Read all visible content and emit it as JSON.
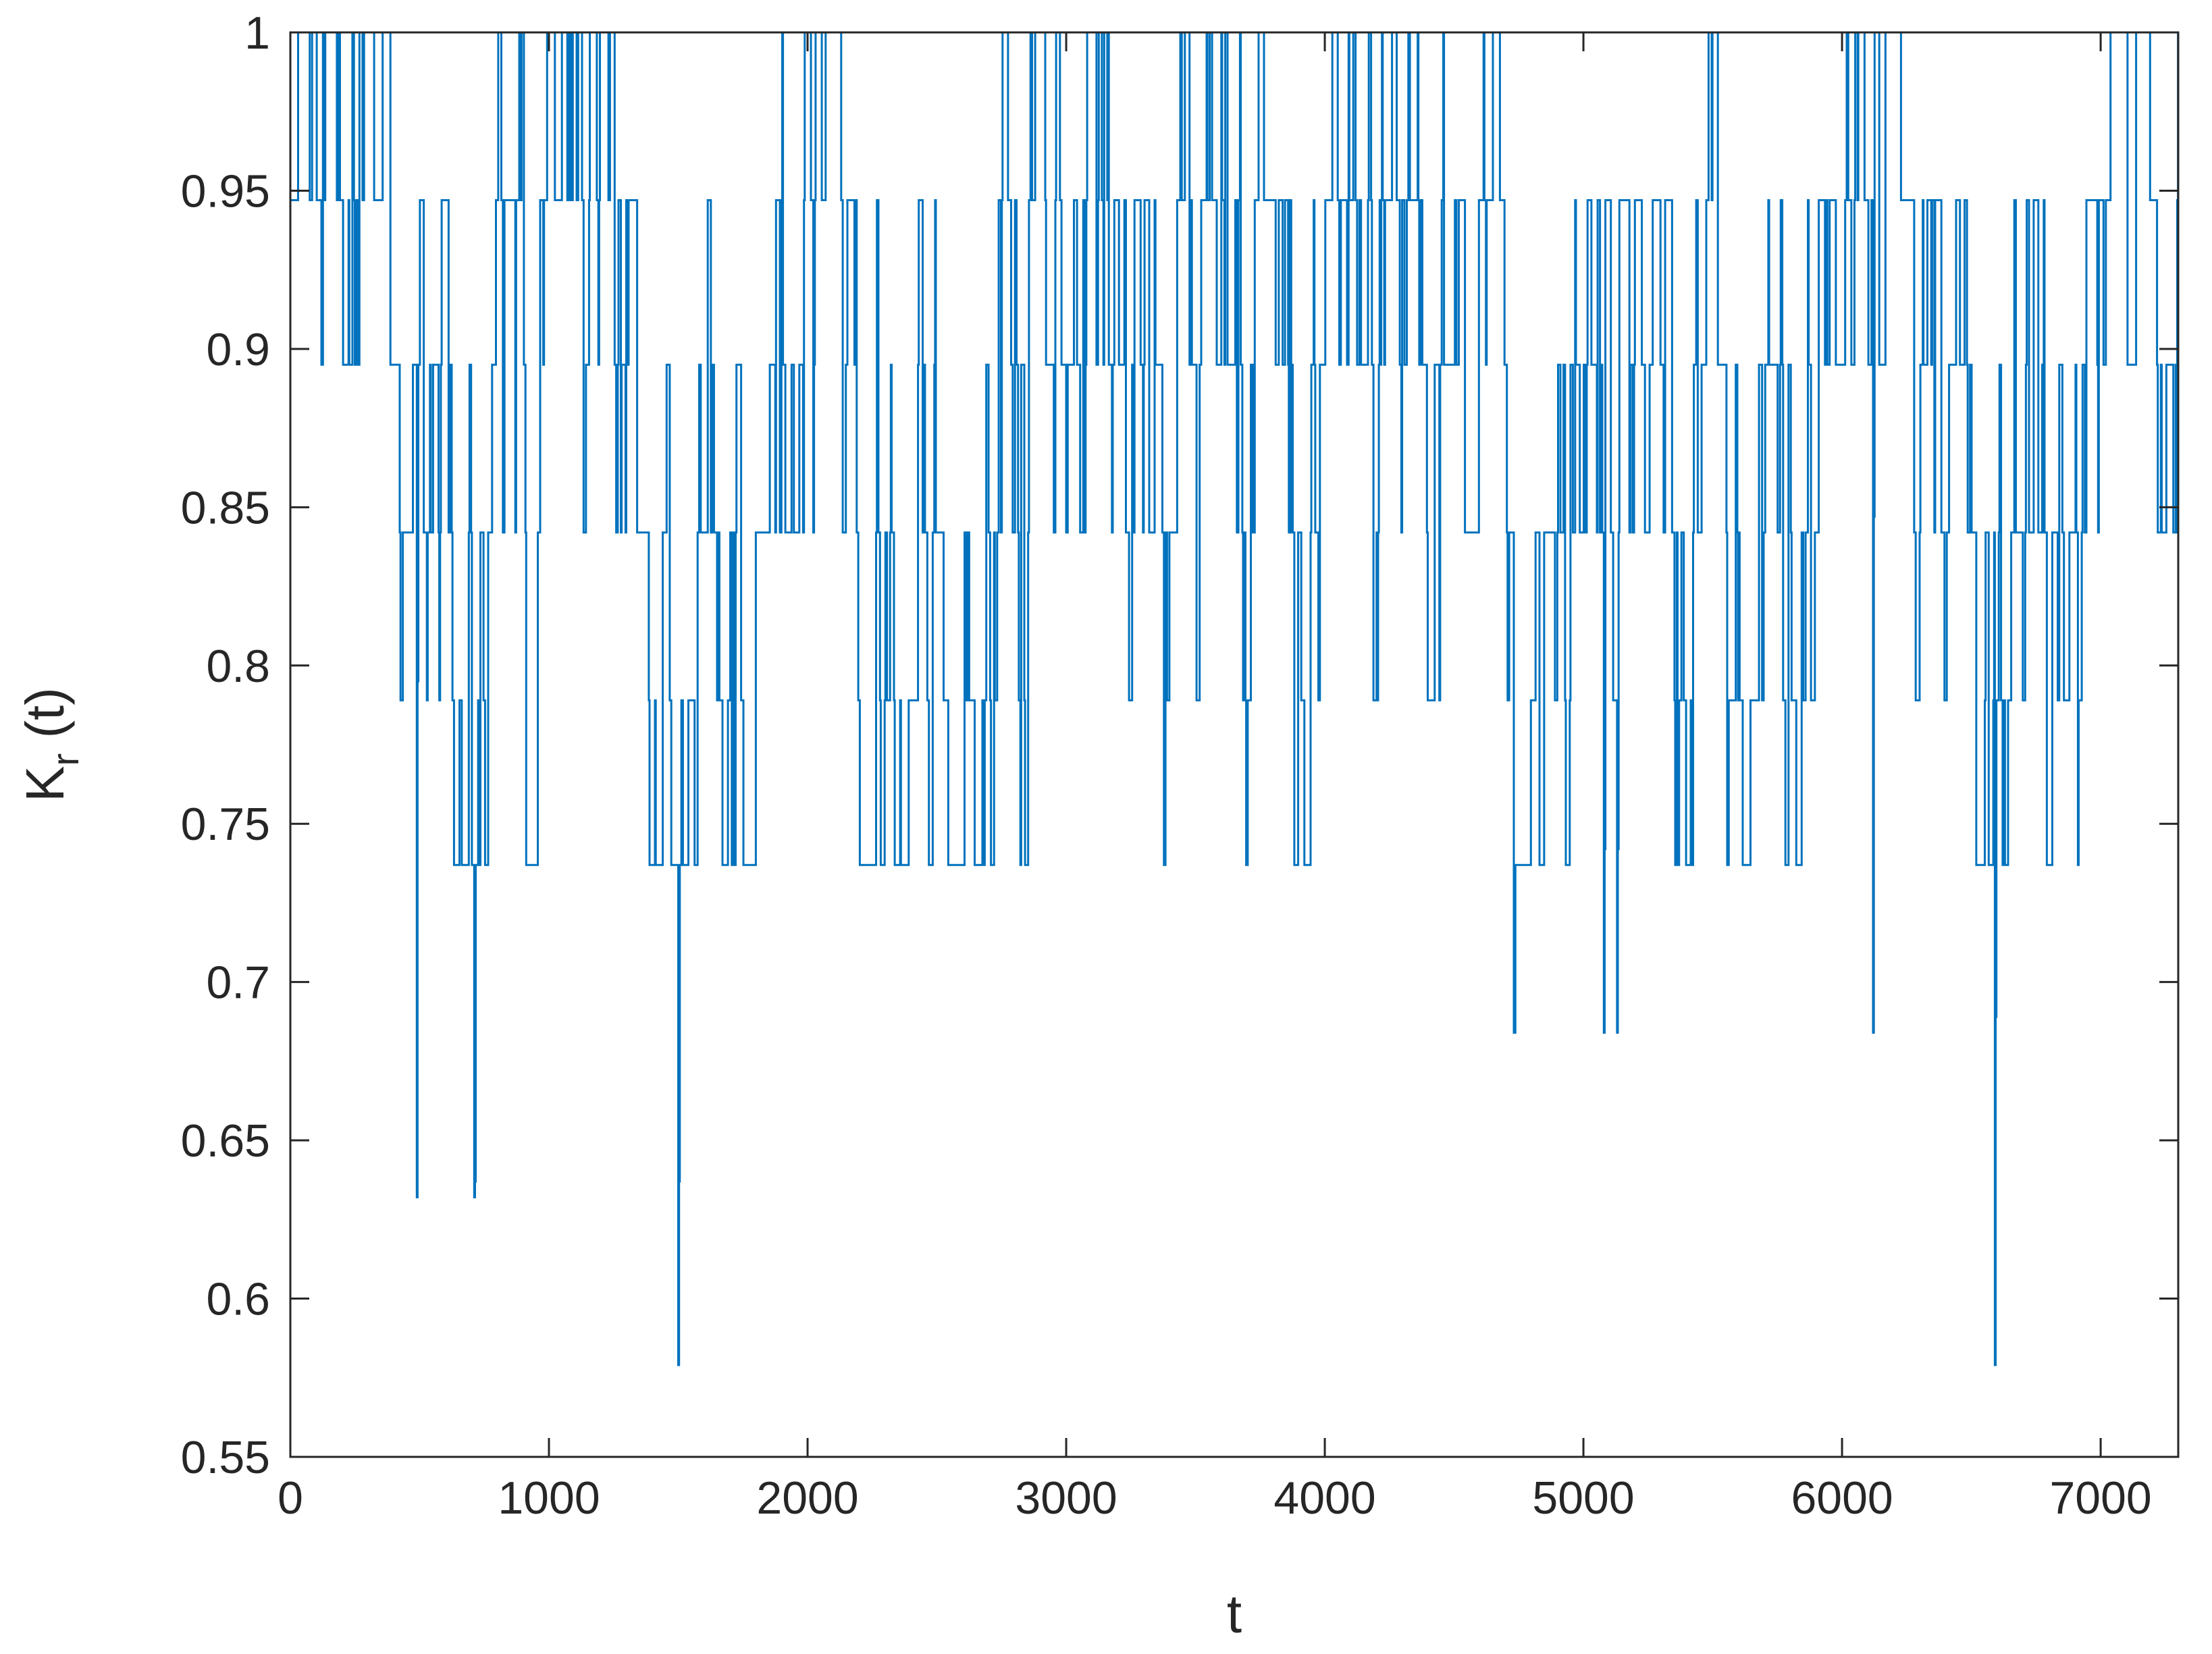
{
  "chart_data": {
    "type": "line",
    "title": "",
    "xlabel": "t",
    "ylabel": {
      "main": "K",
      "subscript": "r",
      "suffix": " (t)"
    },
    "xlim": [
      0,
      7300
    ],
    "ylim": [
      0.55,
      1.0
    ],
    "x_ticks": [
      0,
      1000,
      2000,
      3000,
      4000,
      5000,
      6000,
      7000
    ],
    "x_tick_labels": [
      "0",
      "1000",
      "2000",
      "3000",
      "4000",
      "5000",
      "6000",
      "7000"
    ],
    "y_ticks": [
      0.55,
      0.6,
      0.65,
      0.7,
      0.75,
      0.8,
      0.85,
      0.9,
      0.95,
      1.0
    ],
    "y_tick_labels": [
      "0.55",
      "0.6",
      "0.65",
      "0.7",
      "0.75",
      "0.8",
      "0.85",
      "0.9",
      "0.95",
      "1"
    ],
    "grid": false,
    "legend": "none",
    "series": [
      {
        "color": "#0072BD",
        "levels": [
          0.579,
          0.632,
          0.684,
          0.737,
          0.789,
          0.842,
          0.895,
          0.947,
          1.0
        ],
        "segments": [
          {
            "x": [
              0,
              100
            ],
            "center": 0.947,
            "spread": 1,
            "min": 0.842,
            "max": 1.0
          },
          {
            "x": [
              100,
              420
            ],
            "center": 0.974,
            "spread": 1,
            "min": 0.895,
            "max": 1.0
          },
          {
            "x": [
              420,
              800
            ],
            "center": 0.842,
            "spread": 2,
            "min": 0.632,
            "max": 0.947
          },
          {
            "x": [
              800,
              1000
            ],
            "center": 0.921,
            "spread": 2,
            "min": 0.737,
            "max": 1.0
          },
          {
            "x": [
              1000,
              1250
            ],
            "center": 0.921,
            "spread": 2,
            "min": 0.842,
            "max": 1.0
          },
          {
            "x": [
              1250,
              1460
            ],
            "center": 0.868,
            "spread": 2,
            "min": 0.737,
            "max": 0.947
          },
          {
            "x": [
              1460,
              1560
            ],
            "center": 0.789,
            "spread": 3,
            "min": 0.579,
            "max": 0.947
          },
          {
            "x": [
              1560,
              1800
            ],
            "center": 0.868,
            "spread": 2,
            "min": 0.737,
            "max": 0.947
          },
          {
            "x": [
              1800,
              2150
            ],
            "center": 0.921,
            "spread": 2,
            "min": 0.842,
            "max": 1.0
          },
          {
            "x": [
              2150,
              2600
            ],
            "center": 0.842,
            "spread": 2,
            "min": 0.737,
            "max": 0.947
          },
          {
            "x": [
              2600,
              2950
            ],
            "center": 0.921,
            "spread": 2,
            "min": 0.737,
            "max": 1.0
          },
          {
            "x": [
              2950,
              3200
            ],
            "center": 0.947,
            "spread": 2,
            "min": 0.842,
            "max": 1.0
          },
          {
            "x": [
              3200,
              3400
            ],
            "center": 0.868,
            "spread": 2,
            "min": 0.737,
            "max": 0.947
          },
          {
            "x": [
              3400,
              3750
            ],
            "center": 0.921,
            "spread": 2,
            "min": 0.737,
            "max": 1.0
          },
          {
            "x": [
              3750,
              3950
            ],
            "center": 0.868,
            "spread": 2,
            "min": 0.737,
            "max": 0.947
          },
          {
            "x": [
              3950,
              4450
            ],
            "center": 0.921,
            "spread": 2,
            "min": 0.789,
            "max": 1.0
          },
          {
            "x": [
              4450,
              4700
            ],
            "center": 0.921,
            "spread": 2,
            "min": 0.842,
            "max": 1.0
          },
          {
            "x": [
              4700,
              5050
            ],
            "center": 0.868,
            "spread": 2,
            "min": 0.684,
            "max": 0.947
          },
          {
            "x": [
              5050,
              5450
            ],
            "center": 0.868,
            "spread": 2,
            "min": 0.684,
            "max": 0.947
          },
          {
            "x": [
              5450,
              5950
            ],
            "center": 0.895,
            "spread": 2,
            "min": 0.737,
            "max": 1.0
          },
          {
            "x": [
              5950,
              6200
            ],
            "center": 0.921,
            "spread": 2,
            "min": 0.684,
            "max": 1.0
          },
          {
            "x": [
              6200,
              6550
            ],
            "center": 0.895,
            "spread": 2,
            "min": 0.737,
            "max": 0.947
          },
          {
            "x": [
              6550,
              6650
            ],
            "center": 0.789,
            "spread": 3,
            "min": 0.579,
            "max": 0.947
          },
          {
            "x": [
              6650,
              7000
            ],
            "center": 0.868,
            "spread": 2,
            "min": 0.737,
            "max": 0.947
          },
          {
            "x": [
              7000,
              7300
            ],
            "center": 0.921,
            "spread": 2,
            "min": 0.789,
            "max": 1.0
          }
        ],
        "minima": [
          {
            "x": 490,
            "y": 0.632
          },
          {
            "x": 710,
            "y": 0.632
          },
          {
            "x": 1500,
            "y": 0.579
          },
          {
            "x": 4730,
            "y": 0.684
          },
          {
            "x": 5080,
            "y": 0.684
          },
          {
            "x": 5130,
            "y": 0.684
          },
          {
            "x": 6120,
            "y": 0.684
          },
          {
            "x": 6590,
            "y": 0.579
          }
        ]
      }
    ]
  }
}
